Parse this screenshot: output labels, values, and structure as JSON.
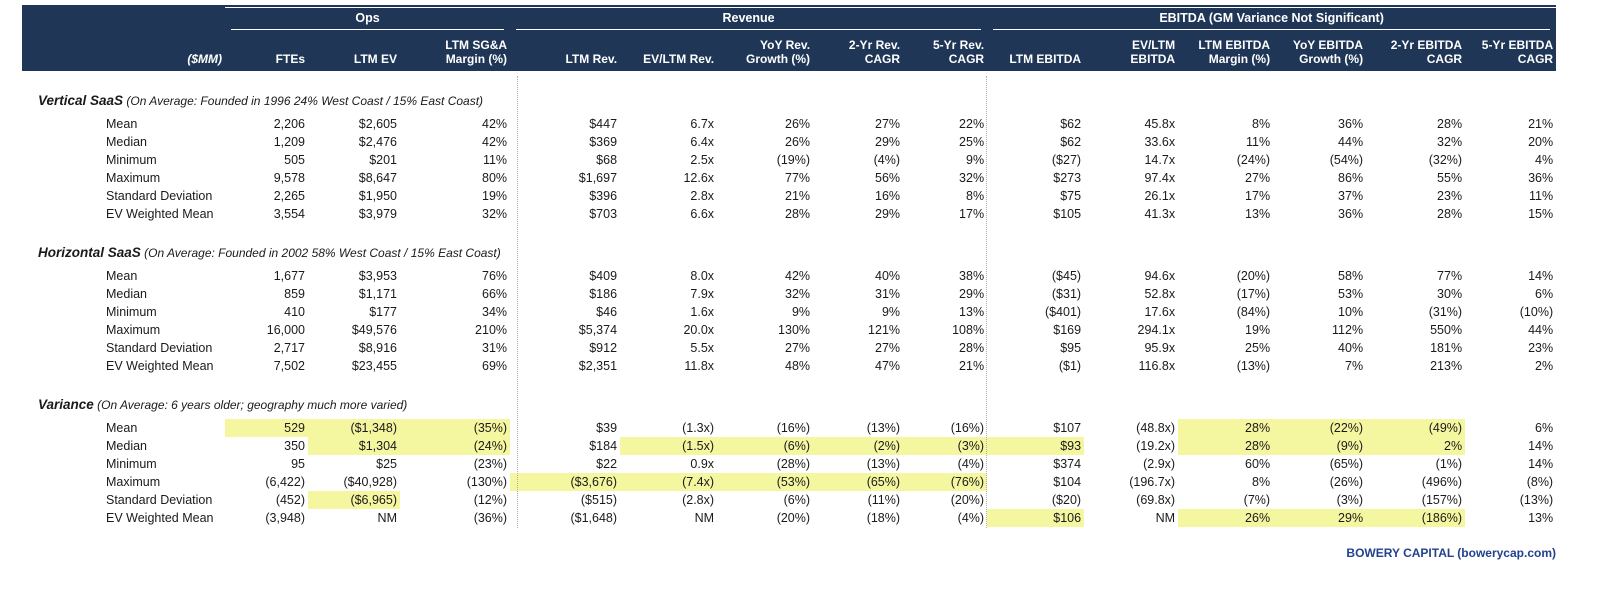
{
  "colors": {
    "header_bg": "#1F3656",
    "header_text": "#FFFFFF",
    "highlight": "#F5F7A0",
    "footer_text": "#23418F",
    "body_text": "#1A1A1A",
    "separator": "#ADADAD"
  },
  "table": {
    "unit_label": "($MM)",
    "groups": [
      {
        "id": "ops",
        "label": "Ops",
        "span": 3
      },
      {
        "id": "revenue",
        "label": "Revenue",
        "span": 5
      },
      {
        "id": "ebitda",
        "label": "EBITDA (GM Variance Not Significant)",
        "span": 6
      }
    ],
    "columns": [
      {
        "id": "ftes",
        "lines": [
          "FTEs"
        ]
      },
      {
        "id": "ltm-ev",
        "lines": [
          "LTM EV"
        ]
      },
      {
        "id": "ltm-sgna-margin",
        "lines": [
          "LTM SG&A",
          "Margin (%)"
        ]
      },
      {
        "id": "ltm-rev",
        "lines": [
          "LTM Rev."
        ]
      },
      {
        "id": "ev-ltm-rev",
        "lines": [
          "EV/LTM Rev."
        ]
      },
      {
        "id": "yoy-rev-growth",
        "lines": [
          "YoY Rev.",
          "Growth (%)"
        ]
      },
      {
        "id": "2yr-rev-cagr",
        "lines": [
          "2-Yr Rev.",
          "CAGR"
        ]
      },
      {
        "id": "5yr-rev-cagr",
        "lines": [
          "5-Yr Rev.",
          "CAGR"
        ]
      },
      {
        "id": "ltm-ebitda",
        "lines": [
          "LTM EBITDA"
        ]
      },
      {
        "id": "ev-ltm-ebitda",
        "lines": [
          "EV/LTM",
          "EBITDA"
        ]
      },
      {
        "id": "ltm-ebitda-margin",
        "lines": [
          "LTM EBITDA",
          "Margin (%)"
        ]
      },
      {
        "id": "yoy-ebitda-growth",
        "lines": [
          "YoY EBITDA",
          "Growth (%)"
        ]
      },
      {
        "id": "2yr-ebitda-cagr",
        "lines": [
          "2-Yr EBITDA",
          "CAGR"
        ]
      },
      {
        "id": "5yr-ebitda-cagr",
        "lines": [
          "5-Yr EBITDA",
          "CAGR"
        ]
      }
    ],
    "sections": [
      {
        "id": "vertical-saas",
        "title": "Vertical SaaS",
        "subtitle": "(On Average: Founded in 1996 24% West Coast / 15% East Coast)",
        "rows": [
          {
            "label": "Mean",
            "values": [
              "2,206",
              "$2,605",
              "42%",
              "$447",
              "6.7x",
              "26%",
              "27%",
              "22%",
              "$62",
              "45.8x",
              "8%",
              "36%",
              "28%",
              "21%"
            ],
            "highlights": []
          },
          {
            "label": "Median",
            "values": [
              "1,209",
              "$2,476",
              "42%",
              "$369",
              "6.4x",
              "26%",
              "29%",
              "25%",
              "$62",
              "33.6x",
              "11%",
              "44%",
              "32%",
              "20%"
            ],
            "highlights": []
          },
          {
            "label": "Minimum",
            "values": [
              "505",
              "$201",
              "11%",
              "$68",
              "2.5x",
              "(19%)",
              "(4%)",
              "9%",
              "($27)",
              "14.7x",
              "(24%)",
              "(54%)",
              "(32%)",
              "4%"
            ],
            "highlights": []
          },
          {
            "label": "Maximum",
            "values": [
              "9,578",
              "$8,647",
              "80%",
              "$1,697",
              "12.6x",
              "77%",
              "56%",
              "32%",
              "$273",
              "97.4x",
              "27%",
              "86%",
              "55%",
              "36%"
            ],
            "highlights": []
          },
          {
            "label": "Standard Deviation",
            "values": [
              "2,265",
              "$1,950",
              "19%",
              "$396",
              "2.8x",
              "21%",
              "16%",
              "8%",
              "$75",
              "26.1x",
              "17%",
              "37%",
              "23%",
              "11%"
            ],
            "highlights": []
          },
          {
            "label": "EV Weighted Mean",
            "values": [
              "3,554",
              "$3,979",
              "32%",
              "$703",
              "6.6x",
              "28%",
              "29%",
              "17%",
              "$105",
              "41.3x",
              "13%",
              "36%",
              "28%",
              "15%"
            ],
            "highlights": []
          }
        ]
      },
      {
        "id": "horizontal-saas",
        "title": "Horizontal SaaS",
        "subtitle": "(On Average: Founded in 2002 58% West Coast / 15% East Coast)",
        "rows": [
          {
            "label": "Mean",
            "values": [
              "1,677",
              "$3,953",
              "76%",
              "$409",
              "8.0x",
              "42%",
              "40%",
              "38%",
              "($45)",
              "94.6x",
              "(20%)",
              "58%",
              "77%",
              "14%"
            ],
            "highlights": []
          },
          {
            "label": "Median",
            "values": [
              "859",
              "$1,171",
              "66%",
              "$186",
              "7.9x",
              "32%",
              "31%",
              "29%",
              "($31)",
              "52.8x",
              "(17%)",
              "53%",
              "30%",
              "6%"
            ],
            "highlights": []
          },
          {
            "label": "Minimum",
            "values": [
              "410",
              "$177",
              "34%",
              "$46",
              "1.6x",
              "9%",
              "9%",
              "13%",
              "($401)",
              "17.6x",
              "(84%)",
              "10%",
              "(31%)",
              "(10%)"
            ],
            "highlights": []
          },
          {
            "label": "Maximum",
            "values": [
              "16,000",
              "$49,576",
              "210%",
              "$5,374",
              "20.0x",
              "130%",
              "121%",
              "108%",
              "$169",
              "294.1x",
              "19%",
              "112%",
              "550%",
              "44%"
            ],
            "highlights": []
          },
          {
            "label": "Standard Deviation",
            "values": [
              "2,717",
              "$8,916",
              "31%",
              "$912",
              "5.5x",
              "27%",
              "27%",
              "28%",
              "$95",
              "95.9x",
              "25%",
              "40%",
              "181%",
              "23%"
            ],
            "highlights": []
          },
          {
            "label": "EV Weighted Mean",
            "values": [
              "7,502",
              "$23,455",
              "69%",
              "$2,351",
              "11.8x",
              "48%",
              "47%",
              "21%",
              "($1)",
              "116.8x",
              "(13%)",
              "7%",
              "213%",
              "2%"
            ],
            "highlights": []
          }
        ]
      },
      {
        "id": "variance",
        "title": "Variance",
        "subtitle": "(On Average: 6 years older; geography much more varied)",
        "rows": [
          {
            "label": "Mean",
            "values": [
              "529",
              "($1,348)",
              "(35%)",
              "$39",
              "(1.3x)",
              "(16%)",
              "(13%)",
              "(16%)",
              "$107",
              "(48.8x)",
              "28%",
              "(22%)",
              "(49%)",
              "6%"
            ],
            "highlights": [
              0,
              1,
              2,
              10,
              11,
              12
            ]
          },
          {
            "label": "Median",
            "values": [
              "350",
              "$1,304",
              "(24%)",
              "$184",
              "(1.5x)",
              "(6%)",
              "(2%)",
              "(3%)",
              "$93",
              "(19.2x)",
              "28%",
              "(9%)",
              "2%",
              "14%"
            ],
            "highlights": [
              1,
              2,
              4,
              5,
              6,
              7,
              8,
              10,
              11,
              12
            ]
          },
          {
            "label": "Minimum",
            "values": [
              "95",
              "$25",
              "(23%)",
              "$22",
              "0.9x",
              "(28%)",
              "(13%)",
              "(4%)",
              "$374",
              "(2.9x)",
              "60%",
              "(65%)",
              "(1%)",
              "14%"
            ],
            "highlights": []
          },
          {
            "label": "Maximum",
            "values": [
              "(6,422)",
              "($40,928)",
              "(130%)",
              "($3,676)",
              "(7.4x)",
              "(53%)",
              "(65%)",
              "(76%)",
              "$104",
              "(196.7x)",
              "8%",
              "(26%)",
              "(496%)",
              "(8%)"
            ],
            "highlights": [
              3,
              4,
              5,
              6,
              7
            ]
          },
          {
            "label": "Standard Deviation",
            "values": [
              "(452)",
              "($6,965)",
              "(12%)",
              "($515)",
              "(2.8x)",
              "(6%)",
              "(11%)",
              "(20%)",
              "($20)",
              "(69.8x)",
              "(7%)",
              "(3%)",
              "(157%)",
              "(13%)"
            ],
            "highlights": [
              1
            ]
          },
          {
            "label": "EV Weighted Mean",
            "values": [
              "(3,948)",
              "NM",
              "(36%)",
              "($1,648)",
              "NM",
              "(20%)",
              "(18%)",
              "(4%)",
              "$106",
              "NM",
              "26%",
              "29%",
              "(186%)",
              "13%"
            ],
            "highlights": [
              8,
              10,
              11,
              12
            ]
          }
        ]
      }
    ]
  },
  "footer": {
    "credit": "BOWERY CAPITAL (bowerycap.com)"
  }
}
